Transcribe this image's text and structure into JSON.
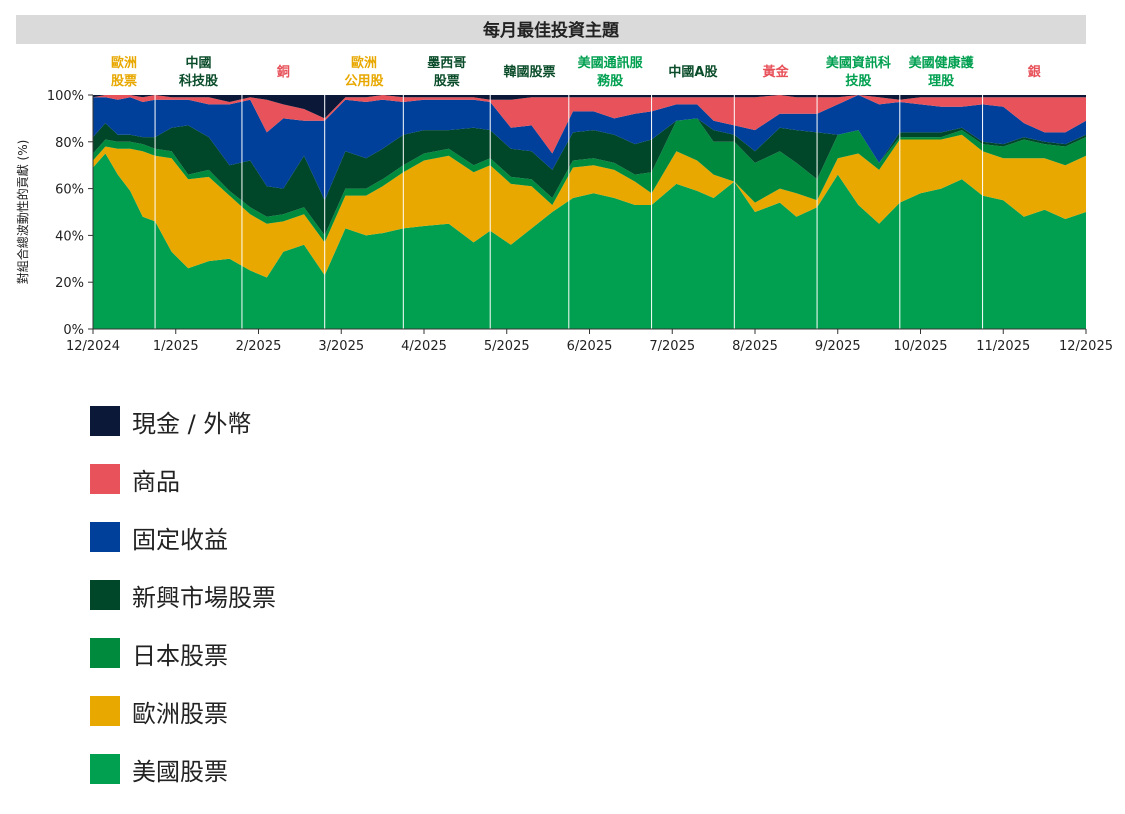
{
  "chart_data": {
    "type": "area",
    "stacked": true,
    "title": "每月最佳投資主題",
    "ylabel": "對組合總波動性的貢獻 (%)",
    "ylim": [
      0,
      100
    ],
    "x_ticks": [
      "12/2024",
      "1/2025",
      "2/2025",
      "3/2025",
      "4/2025",
      "5/2025",
      "6/2025",
      "7/2025",
      "8/2025",
      "9/2025",
      "10/2025",
      "11/2025",
      "12/2025"
    ],
    "y_ticks": [
      "0%",
      "20%",
      "40%",
      "60%",
      "80%",
      "100%"
    ],
    "grid": false,
    "legend_position": "bottom-left",
    "themes": [
      {
        "label": [
          "歐洲",
          "股票"
        ],
        "color": "#e8a800"
      },
      {
        "label": [
          "中國",
          "科技股"
        ],
        "color": "#0b4d2b"
      },
      {
        "label": [
          "銅"
        ],
        "color": "#e8525a"
      },
      {
        "label": [
          "歐洲",
          "公用股"
        ],
        "color": "#e8a800"
      },
      {
        "label": [
          "墨西哥",
          "股票"
        ],
        "color": "#0b4d2b"
      },
      {
        "label": [
          "韓國股票"
        ],
        "color": "#0b4d2b"
      },
      {
        "label": [
          "美國通訊服",
          "務股"
        ],
        "color": "#00a050"
      },
      {
        "label": [
          "中國A股"
        ],
        "color": "#0b4d2b"
      },
      {
        "label": [
          "黃金"
        ],
        "color": "#e8525a"
      },
      {
        "label": [
          "美國資訊科",
          "技股"
        ],
        "color": "#00a050"
      },
      {
        "label": [
          "美國健康護",
          "理股"
        ],
        "color": "#00a050"
      },
      {
        "label": [
          "銀"
        ],
        "color": "#e8525a"
      }
    ],
    "month_boundaries": [
      0.0,
      0.75,
      1.8,
      2.8,
      3.75,
      4.8,
      5.75,
      6.75,
      7.75,
      8.75,
      9.75,
      10.75,
      12.0
    ],
    "x": [
      0,
      0.15,
      0.3,
      0.45,
      0.6,
      0.75,
      0.95,
      1.15,
      1.4,
      1.65,
      1.9,
      2.1,
      2.3,
      2.55,
      2.8,
      3.05,
      3.3,
      3.5,
      3.75,
      4.0,
      4.3,
      4.6,
      4.8,
      5.05,
      5.3,
      5.55,
      5.8,
      6.05,
      6.3,
      6.55,
      6.75,
      7.05,
      7.3,
      7.5,
      7.75,
      8.0,
      8.3,
      8.5,
      8.75,
      9.0,
      9.25,
      9.5,
      9.75,
      10.0,
      10.25,
      10.5,
      10.75,
      11.0,
      11.25,
      11.5,
      11.75,
      12.0
    ],
    "series": [
      {
        "name": "美國股票",
        "color": "#00a050",
        "values": [
          69,
          75,
          66,
          59,
          48,
          46,
          33,
          26,
          29,
          30,
          25,
          22,
          33,
          36,
          23,
          43,
          40,
          41,
          43,
          44,
          45,
          37,
          42,
          36,
          43,
          50,
          56,
          58,
          56,
          53,
          53,
          62,
          59,
          56,
          63,
          50,
          54,
          48,
          52,
          66,
          53,
          45,
          54,
          58,
          60,
          64,
          57,
          55,
          48,
          51,
          47,
          50
        ]
      },
      {
        "name": "歐洲股票",
        "color": "#e8a800",
        "values": [
          3,
          3,
          11,
          18,
          28,
          28,
          40,
          38,
          36,
          27,
          24,
          23,
          13,
          13,
          14,
          14,
          17,
          20,
          24,
          28,
          29,
          30,
          28,
          26,
          18,
          3,
          13,
          12,
          12,
          10,
          5,
          14,
          13,
          10,
          0,
          4,
          6,
          10,
          3,
          7,
          22,
          23,
          27,
          23,
          21,
          19,
          19,
          18,
          25,
          22,
          23,
          24
        ]
      },
      {
        "name": "日本股票",
        "color": "#008a3e",
        "values": [
          3,
          3,
          3,
          3,
          3,
          3,
          3,
          2,
          3,
          2,
          3,
          3,
          3,
          3,
          3,
          3,
          3,
          3,
          3,
          3,
          3,
          3,
          3,
          3,
          3,
          3,
          3,
          3,
          3,
          3,
          9,
          13,
          18,
          14,
          17,
          17,
          16,
          13,
          9,
          10,
          10,
          3,
          1,
          1,
          1,
          2,
          3,
          5,
          8,
          6,
          8,
          8
        ]
      },
      {
        "name": "新興市場股票",
        "color": "#00472a",
        "values": [
          7,
          7,
          3,
          3,
          3,
          5,
          10,
          21,
          14,
          11,
          20,
          13,
          11,
          22,
          15,
          16,
          13,
          13,
          13,
          10,
          8,
          16,
          12,
          12,
          12,
          12,
          12,
          12,
          12,
          13,
          14,
          0,
          0,
          5,
          3,
          5,
          10,
          14,
          20,
          0,
          0,
          0,
          2,
          2,
          2,
          1,
          1,
          1,
          1,
          1,
          1,
          1
        ]
      },
      {
        "name": "固定收益",
        "color": "#003f9a",
        "values": [
          17,
          11,
          15,
          16,
          15,
          16,
          12,
          11,
          14,
          26,
          26,
          23,
          30,
          15,
          34,
          22,
          24,
          21,
          14,
          13,
          13,
          12,
          12,
          9,
          11,
          7,
          9,
          8,
          7,
          13,
          12,
          7,
          6,
          4,
          4,
          9,
          6,
          7,
          8,
          13,
          15,
          25,
          13,
          12,
          11,
          9,
          16,
          16,
          6,
          4,
          5,
          6
        ]
      },
      {
        "name": "商品",
        "color": "#e8525a",
        "values": [
          0,
          1,
          2,
          1,
          2,
          2,
          1,
          1,
          3,
          1,
          1,
          14,
          6,
          5,
          1,
          1,
          2,
          2,
          2,
          1,
          1,
          1,
          1,
          12,
          12,
          24,
          6,
          6,
          9,
          7,
          6,
          3,
          3,
          10,
          12,
          14,
          8,
          7,
          7,
          3,
          0,
          3,
          1,
          3,
          4,
          4,
          3,
          4,
          11,
          15,
          15,
          10
        ]
      },
      {
        "name": "現金 / 外幣",
        "color": "#0b1838",
        "values": [
          1,
          0,
          0,
          0,
          1,
          0,
          1,
          1,
          1,
          3,
          1,
          2,
          4,
          6,
          10,
          1,
          1,
          0,
          1,
          1,
          1,
          1,
          2,
          2,
          1,
          1,
          1,
          1,
          1,
          1,
          1,
          1,
          1,
          1,
          1,
          1,
          0,
          1,
          1,
          1,
          0,
          1,
          2,
          1,
          1,
          1,
          1,
          1,
          1,
          1,
          1,
          1
        ]
      }
    ]
  },
  "legend": [
    {
      "label": "現金 / 外幣",
      "color": "#0b1838"
    },
    {
      "label": "商品",
      "color": "#e8525a"
    },
    {
      "label": "固定收益",
      "color": "#003f9a"
    },
    {
      "label": "新興市場股票",
      "color": "#00472a"
    },
    {
      "label": "日本股票",
      "color": "#008a3e"
    },
    {
      "label": "歐洲股票",
      "color": "#e8a800"
    },
    {
      "label": "美國股票",
      "color": "#00a050"
    }
  ]
}
